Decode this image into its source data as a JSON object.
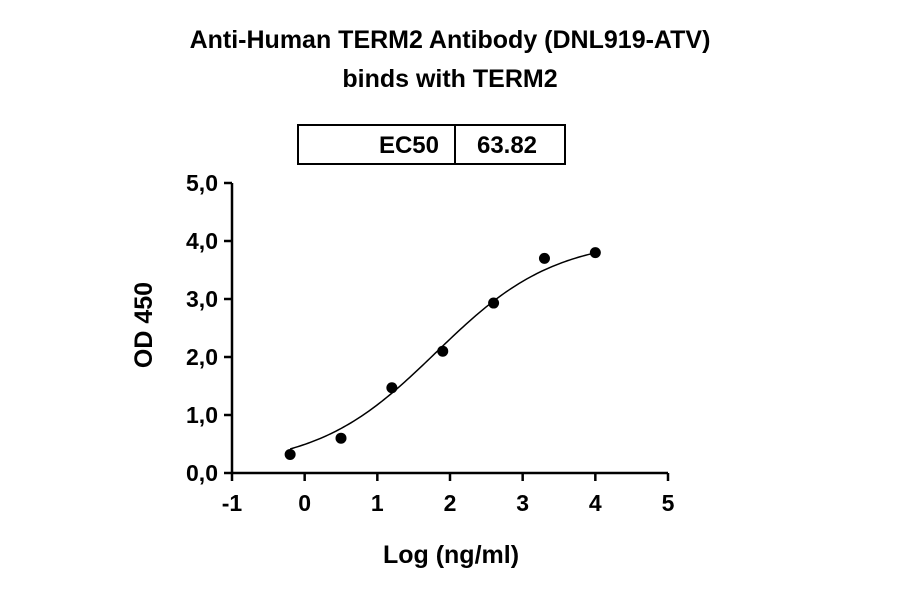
{
  "chart_data": {
    "type": "scatter",
    "title": [
      "Anti-Human TERM2 Antibody (DNL919-ATV)",
      "binds with TERM2"
    ],
    "xlabel": "Log (ng/ml)",
    "ylabel": "OD 450",
    "xlim": [
      -1,
      5
    ],
    "ylim": [
      0,
      5
    ],
    "x_ticks": [
      -1,
      0,
      1,
      2,
      3,
      4,
      5
    ],
    "x_tick_labels": [
      "-1",
      "0",
      "1",
      "2",
      "3",
      "4",
      "5"
    ],
    "y_ticks": [
      0,
      1,
      2,
      3,
      4,
      5
    ],
    "y_tick_labels": [
      "0,0",
      "1,0",
      "2,0",
      "3,0",
      "4,0",
      "5,0"
    ],
    "grid": false,
    "legend": "none",
    "points": [
      {
        "x": -0.2,
        "y": 0.32
      },
      {
        "x": 0.5,
        "y": 0.6
      },
      {
        "x": 1.2,
        "y": 1.47
      },
      {
        "x": 1.9,
        "y": 2.1
      },
      {
        "x": 2.6,
        "y": 2.93
      },
      {
        "x": 3.3,
        "y": 3.7
      },
      {
        "x": 4.0,
        "y": 3.8
      }
    ],
    "fit_curve": {
      "model": "four-parameter-logistic",
      "bottom": 0.1,
      "top": 4.05,
      "logEC50": 1.805,
      "hillslope": 0.53,
      "x_range": [
        -0.2,
        4.0
      ]
    },
    "annotation": {
      "label": "EC50",
      "value": "63.82"
    },
    "colors": {
      "points": "#000000",
      "curve": "#000000",
      "axes": "#000000"
    }
  }
}
